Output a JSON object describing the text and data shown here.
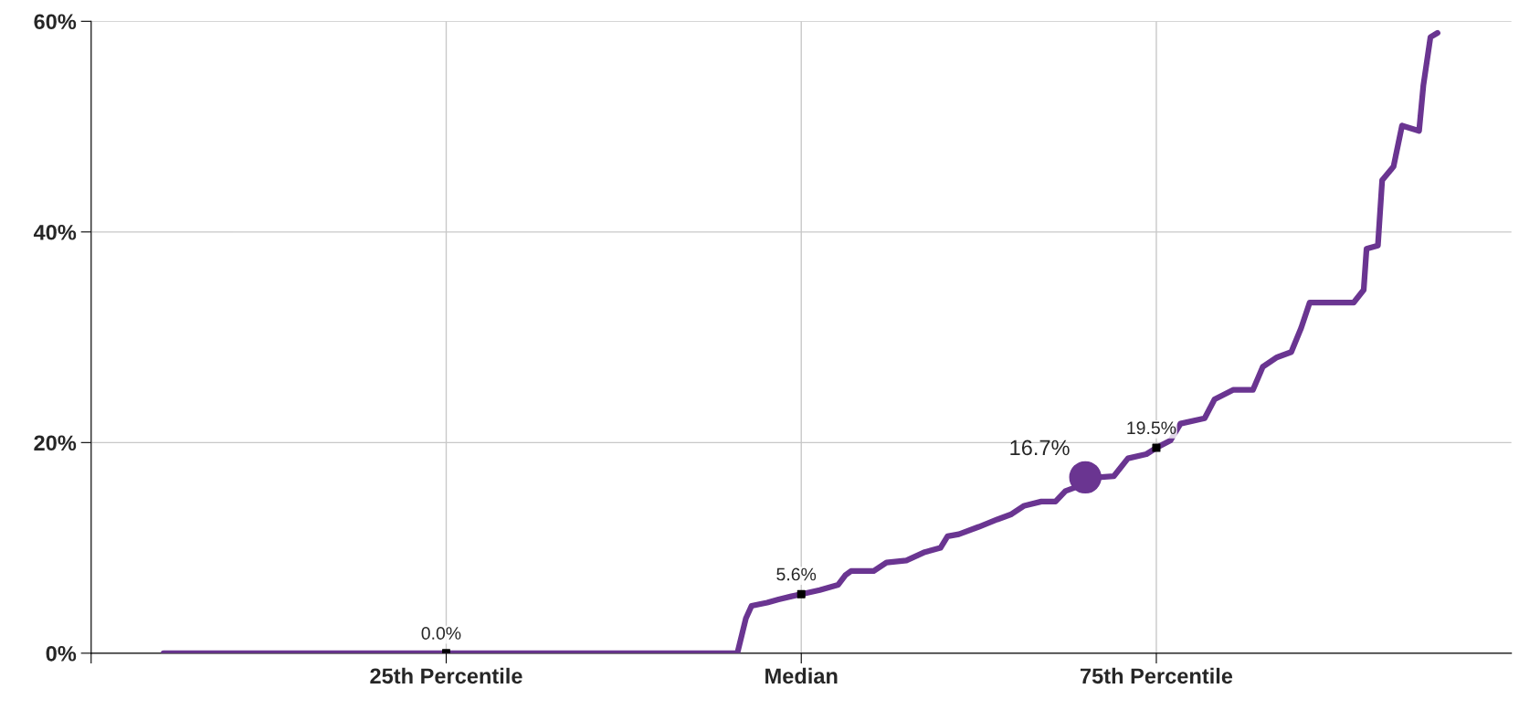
{
  "chart_data": {
    "type": "line",
    "xlim": [
      0,
      100
    ],
    "ylim": [
      0,
      60
    ],
    "xticks": [
      {
        "value": 0,
        "label": null
      },
      {
        "value": 25,
        "label": "25th Percentile"
      },
      {
        "value": 50,
        "label": "Median"
      },
      {
        "value": 75,
        "label": "75th Percentile"
      }
    ],
    "yticks": [
      {
        "value": 0,
        "label": "0%"
      },
      {
        "value": 20,
        "label": "20%"
      },
      {
        "value": 40,
        "label": "40%"
      },
      {
        "value": 60,
        "label": "60%"
      }
    ],
    "grid": true,
    "series": [
      {
        "color": "#6a3591",
        "marker": "none",
        "line_style": "solid",
        "x": [
          5.1,
          45.5,
          46.1,
          46.5,
          47.6,
          48.4,
          49.3,
          50,
          51.3,
          52.6,
          53.1,
          53.5,
          55.1,
          56.0,
          57.4,
          58.7,
          59.8,
          60.3,
          61.1,
          62.5,
          63.8,
          64.8,
          65.7,
          66.9,
          67.9,
          68.6,
          69.6,
          70.0,
          70.9,
          72.0,
          73.0,
          74.3,
          75,
          76.0,
          76.7,
          78.4,
          79.1,
          80.4,
          81.8,
          82.5,
          83.5,
          84.5,
          85.2,
          85.8,
          88.9,
          89.6,
          89.8,
          90.6,
          90.9,
          91.7,
          92.3,
          93.5,
          93.8,
          94.3,
          94.8
        ],
        "values": [
          0,
          0,
          3.3,
          4.5,
          4.8,
          5.1,
          5.4,
          5.6,
          6.0,
          6.5,
          7.4,
          7.8,
          7.8,
          8.6,
          8.8,
          9.6,
          10.0,
          11.1,
          11.3,
          12.0,
          12.7,
          13.2,
          14.0,
          14.4,
          14.4,
          15.4,
          15.9,
          16.7,
          16.7,
          16.8,
          18.5,
          18.9,
          19.5,
          20.2,
          21.8,
          22.3,
          24.1,
          25.0,
          25.0,
          27.2,
          28.1,
          28.6,
          30.9,
          33.3,
          33.3,
          34.5,
          38.4,
          38.7,
          44.9,
          46.2,
          50.1,
          49.6,
          53.9,
          58.5,
          58.9
        ]
      },
      {
        "type": "scatter",
        "color": "#000000",
        "marker": "square",
        "x": [
          25,
          50,
          75
        ],
        "values": [
          0.0,
          5.6,
          19.5
        ],
        "value_labels": [
          "0.0%",
          "5.6%",
          "19.5%"
        ]
      },
      {
        "type": "scatter",
        "color": "#6a3591",
        "marker": "circle",
        "x": [
          70.0
        ],
        "values": [
          16.7
        ],
        "value_labels": [
          "16.7%"
        ]
      }
    ]
  }
}
